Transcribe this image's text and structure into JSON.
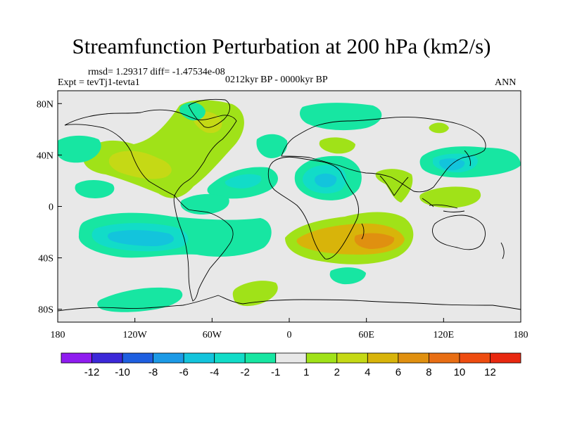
{
  "title": "Streamfunction Perturbation at 200 hPa (km2/s)",
  "stats": "rmsd= 1.29317 diff= -1.47534e-08",
  "experiment": "Expt = tevTj1-tevta1",
  "period": "0212kyr BP - 0000kyr BP",
  "season": "ANN",
  "chart_data": {
    "type": "heatmap",
    "map_projection": "cylindrical equidistant",
    "lon_range": [
      -180,
      180
    ],
    "lat_range": [
      -90,
      90
    ],
    "x_ticks": [
      {
        "value": -180,
        "label": "180"
      },
      {
        "value": -120,
        "label": "120W"
      },
      {
        "value": -60,
        "label": "60W"
      },
      {
        "value": 0,
        "label": "0"
      },
      {
        "value": 60,
        "label": "60E"
      },
      {
        "value": 120,
        "label": "120E"
      },
      {
        "value": 180,
        "label": "180"
      }
    ],
    "y_ticks": [
      {
        "value": 80,
        "label": "80N"
      },
      {
        "value": 40,
        "label": "40N"
      },
      {
        "value": 0,
        "label": "0"
      },
      {
        "value": -40,
        "label": "40S"
      },
      {
        "value": -80,
        "label": "80S"
      }
    ],
    "colorbar": {
      "colors": [
        "#8f1cf0",
        "#3c28d8",
        "#1e5fe0",
        "#1c9ae6",
        "#13c4dc",
        "#12dcc8",
        "#17e6a2",
        "#e8e8e8",
        "#a0e218",
        "#c5d915",
        "#d8b40a",
        "#e09010",
        "#e86e14",
        "#ee4c10",
        "#e82810"
      ],
      "tick_labels": [
        "-12",
        "-10",
        "-8",
        "-6",
        "-4",
        "-2",
        "-1",
        "1",
        "2",
        "4",
        "6",
        "8",
        "10",
        "12"
      ]
    },
    "anomalies": [
      {
        "name": "north-america-positive",
        "lon": -100,
        "lat": 38,
        "value": 2,
        "peak": 4
      },
      {
        "name": "greenland-positive",
        "lon": -45,
        "lat": 62,
        "value": 2
      },
      {
        "name": "north-pacific-negative",
        "lon": -170,
        "lat": 40,
        "value": -1
      },
      {
        "name": "eastern-pacific-negative",
        "lon": -140,
        "lat": 12,
        "value": -1
      },
      {
        "name": "caribbean-negative",
        "lon": -45,
        "lat": 18,
        "value": -2
      },
      {
        "name": "tropical-atlantic-negative",
        "lon": -60,
        "lat": -2,
        "value": -1
      },
      {
        "name": "south-pacific-negative",
        "lon": -110,
        "lat": -22,
        "value": -4,
        "peak": -6
      },
      {
        "name": "southwest-atlantic-negative",
        "lon": -30,
        "lat": -25,
        "value": -1
      },
      {
        "name": "southern-ocean-negative",
        "lon": -125,
        "lat": -73,
        "value": -1
      },
      {
        "name": "antarctic-positive",
        "lon": -32,
        "lat": -70,
        "value": 2
      },
      {
        "name": "europe-negative",
        "lon": -15,
        "lat": 42,
        "value": -1
      },
      {
        "name": "north-eurasia-negative",
        "lon": 40,
        "lat": 75,
        "value": -1
      },
      {
        "name": "central-asia-positive",
        "lon": 40,
        "lat": 48,
        "value": 2
      },
      {
        "name": "north-africa-negative",
        "lon": 25,
        "lat": 20,
        "value": -2,
        "peak": -4
      },
      {
        "name": "south-indian-positive",
        "lon": 65,
        "lat": -25,
        "value": 4,
        "peak": 6
      },
      {
        "name": "southern-africa-negative",
        "lon": 30,
        "lat": -52,
        "value": -1
      },
      {
        "name": "south-asia-positive",
        "lon": 90,
        "lat": 25,
        "value": 2
      },
      {
        "name": "east-asia-negative",
        "lon": 130,
        "lat": 38,
        "value": -2,
        "peak": -4
      },
      {
        "name": "northeast-asia-positive",
        "lon": 120,
        "lat": 60,
        "value": 2
      },
      {
        "name": "philippines-positive",
        "lon": 130,
        "lat": 8,
        "value": 2
      }
    ]
  }
}
